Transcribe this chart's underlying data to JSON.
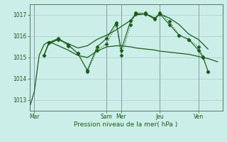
{
  "background_color": "#cceee8",
  "grid_color_major": "#aacccc",
  "grid_color_minor": "#bbddcc",
  "line_color": "#1a5c1a",
  "xlabel": "Pression niveau de la mer( hPa )",
  "ylim": [
    1012.5,
    1017.5
  ],
  "yticks": [
    1013,
    1014,
    1015,
    1016,
    1017
  ],
  "xlim": [
    0,
    120
  ],
  "day_labels": [
    "Mar",
    "Sam",
    "Mer",
    "Jeu",
    "Ven"
  ],
  "day_positions": [
    3,
    48,
    57,
    81,
    105
  ],
  "vline_positions": [
    3,
    48,
    57,
    81,
    105
  ],
  "series": [
    {
      "x": [
        0,
        3,
        6,
        9,
        12,
        18,
        24,
        30,
        36,
        42,
        48,
        54,
        57,
        63,
        66,
        72,
        78,
        81,
        87,
        93,
        99,
        105,
        111,
        117
      ],
      "y": [
        1012.65,
        1013.4,
        1015.1,
        1015.6,
        1015.75,
        1015.55,
        1015.35,
        1015.1,
        1015.0,
        1015.3,
        1015.5,
        1015.55,
        1015.55,
        1015.5,
        1015.45,
        1015.4,
        1015.35,
        1015.3,
        1015.25,
        1015.2,
        1015.15,
        1015.05,
        1014.95,
        1014.8
      ],
      "linestyle": "-",
      "marker": null,
      "lw": 0.9
    },
    {
      "x": [
        9,
        12,
        18,
        24,
        30,
        36,
        42,
        48,
        54,
        57,
        63,
        66,
        72,
        78,
        81,
        87,
        93,
        99,
        105,
        111
      ],
      "y": [
        1015.1,
        1015.65,
        1015.85,
        1015.65,
        1015.45,
        1015.55,
        1015.85,
        1016.05,
        1016.3,
        1016.45,
        1016.75,
        1017.0,
        1017.05,
        1016.85,
        1017.05,
        1016.85,
        1016.55,
        1016.1,
        1015.85,
        1015.4
      ],
      "linestyle": "-",
      "marker": null,
      "lw": 0.9
    },
    {
      "x": [
        9,
        12,
        18,
        24,
        30,
        36,
        42,
        48,
        54,
        57,
        63,
        66,
        72,
        78,
        81,
        87,
        93,
        99,
        105,
        108,
        111
      ],
      "y": [
        1015.1,
        1015.7,
        1015.85,
        1015.55,
        1015.2,
        1014.35,
        1015.35,
        1015.65,
        1016.55,
        1015.1,
        1016.55,
        1017.1,
        1017.1,
        1016.85,
        1017.1,
        1016.7,
        1016.05,
        1015.85,
        1015.5,
        1015.05,
        1014.35
      ],
      "linestyle": ":",
      "marker": "D",
      "lw": 0.8
    },
    {
      "x": [
        9,
        12,
        18,
        24,
        30,
        36,
        42,
        48,
        54,
        57,
        63,
        66,
        72,
        78,
        81,
        87,
        93,
        99,
        105,
        108,
        111
      ],
      "y": [
        1015.1,
        1015.7,
        1015.9,
        1015.6,
        1015.2,
        1014.4,
        1015.5,
        1015.9,
        1016.65,
        1015.35,
        1016.75,
        1017.05,
        1017.05,
        1016.8,
        1017.05,
        1016.55,
        1016.05,
        1015.85,
        1015.35,
        1015.0,
        1014.35
      ],
      "linestyle": "-",
      "marker": "D",
      "lw": 0.8
    }
  ]
}
